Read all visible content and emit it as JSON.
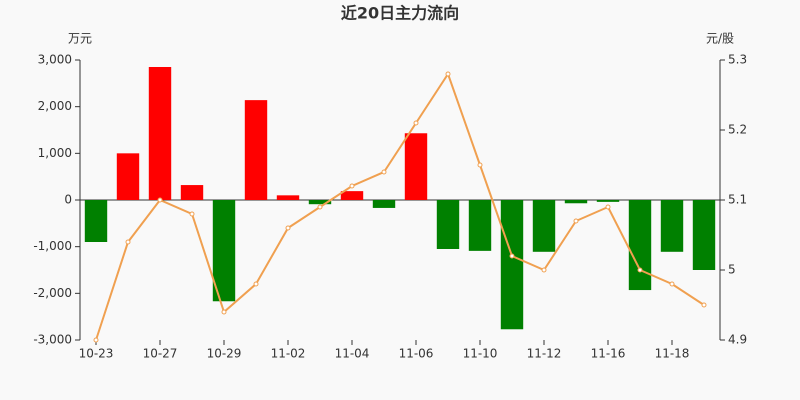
{
  "chart_data": {
    "type": "bar",
    "title": "近20日主力流向",
    "y_label": "万元",
    "y2_label": "元/股",
    "categories": [
      "10-23",
      null,
      "10-27",
      null,
      "10-29",
      null,
      "11-02",
      null,
      "11-04",
      null,
      "11-06",
      null,
      "11-10",
      null,
      "11-12",
      null,
      "11-16",
      null,
      "11-18",
      null
    ],
    "ylim": [
      -3000,
      3000
    ],
    "yticks": [
      {
        "value": 3000,
        "label": "3,000"
      },
      {
        "value": 2000,
        "label": "2,000"
      },
      {
        "value": 1000,
        "label": "1,000"
      },
      0,
      {
        "value": -1000,
        "label": "-1,000"
      },
      {
        "value": -2000,
        "label": "-2,000"
      },
      {
        "value": -3000,
        "label": "-3,000"
      }
    ],
    "y2lim": [
      4.9,
      5.3
    ],
    "y2ticks": [
      5.3,
      5.2,
      5.1,
      5,
      4.9
    ],
    "series": [
      {
        "type": "bar",
        "positive_color": "#ff0000",
        "negative_color": "#008000",
        "values": [
          -900,
          1000,
          2850,
          320,
          -2170,
          2140,
          100,
          -90,
          190,
          -170,
          1430,
          -1050,
          -1090,
          -2770,
          -1110,
          -70,
          -40,
          -1930,
          -1110,
          -1500
        ]
      },
      {
        "type": "line",
        "axis": "y2",
        "color": "#f0a050",
        "values": [
          4.9,
          5.04,
          5.1,
          5.08,
          4.94,
          4.98,
          5.06,
          5.09,
          5.12,
          5.14,
          5.21,
          5.28,
          5.15,
          5.02,
          5.0,
          5.07,
          5.09,
          5.0,
          4.98,
          4.95
        ]
      }
    ]
  }
}
